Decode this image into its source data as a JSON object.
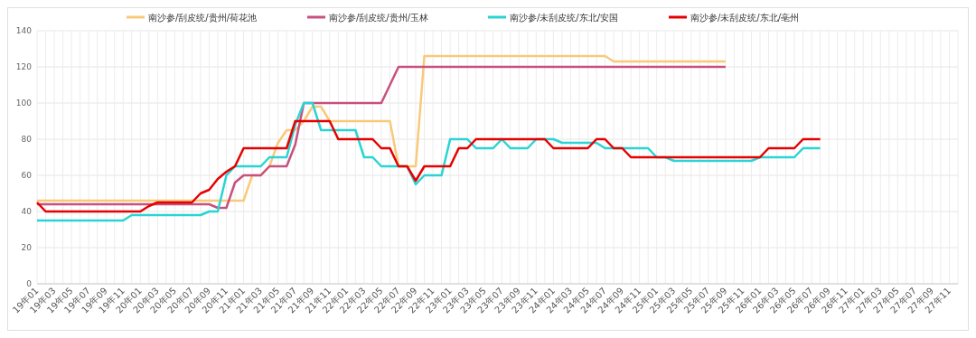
{
  "chart_data": {
    "type": "line",
    "categories": [
      "19年01",
      null,
      "19年03",
      null,
      "19年05",
      null,
      "19年07",
      null,
      "19年09",
      null,
      "19年11",
      null,
      "20年01",
      null,
      "20年03",
      null,
      "20年05",
      null,
      "20年07",
      null,
      "20年09",
      null,
      "20年11",
      null,
      "21年01",
      null,
      "21年03",
      null,
      "21年05",
      null,
      "21年07",
      null,
      "21年09",
      null,
      "21年11",
      null,
      "22年01",
      null,
      "22年03",
      null,
      "22年05",
      null,
      "22年07",
      null,
      "22年09",
      null,
      "22年11",
      null,
      "23年01",
      null,
      "23年03",
      null,
      "23年05",
      null,
      "23年07",
      null,
      "23年09",
      null,
      "23年11",
      null,
      "24年01",
      null,
      "24年03",
      null,
      "24年05",
      null,
      "24年07",
      null,
      "24年09",
      null,
      "24年11",
      null,
      "25年01",
      null,
      "25年03",
      null,
      "25年05",
      null,
      "25年07",
      null,
      "25年09",
      null,
      "25年11",
      null,
      "26年01",
      null,
      "26年03",
      null,
      "26年05",
      null,
      "26年07",
      null,
      "26年09",
      null,
      "26年11",
      null,
      "27年01",
      null,
      "27年03",
      null,
      "27年05",
      null,
      "27年07",
      null,
      "27年09",
      null,
      "27年11",
      null
    ],
    "series": [
      {
        "name": "南沙参/刮皮统/贵州/荷花池",
        "color": "#f9c97a",
        "values": [
          46,
          46,
          46,
          46,
          46,
          46,
          46,
          46,
          46,
          46,
          46,
          46,
          46,
          46,
          46,
          46,
          46,
          46,
          46,
          46,
          46,
          46,
          46,
          46,
          46,
          60,
          60,
          65,
          78,
          85,
          85,
          90,
          98,
          98,
          90,
          90,
          90,
          90,
          90,
          90,
          90,
          90,
          65,
          65,
          65,
          126,
          126,
          126,
          126,
          126,
          126,
          126,
          126,
          126,
          126,
          126,
          126,
          126,
          126,
          126,
          126,
          126,
          126,
          126,
          126,
          126,
          126,
          123,
          123,
          123,
          123,
          123,
          123,
          123,
          123,
          123,
          123,
          123,
          123,
          123,
          123,
          null,
          null,
          null,
          null,
          null,
          null,
          null,
          null,
          null,
          null,
          null,
          null,
          null,
          null,
          null,
          null,
          null,
          null,
          null,
          null,
          null,
          null,
          null,
          null,
          null,
          null,
          null
        ]
      },
      {
        "name": "南沙参/刮皮统/贵州/玉林",
        "color": "#c8507e",
        "values": [
          44,
          44,
          44,
          44,
          44,
          44,
          44,
          44,
          44,
          44,
          44,
          44,
          44,
          44,
          44,
          44,
          44,
          44,
          44,
          44,
          44,
          42,
          42,
          56,
          60,
          60,
          60,
          65,
          65,
          65,
          77,
          100,
          100,
          100,
          100,
          100,
          100,
          100,
          100,
          100,
          100,
          110,
          120,
          120,
          120,
          120,
          120,
          120,
          120,
          120,
          120,
          120,
          120,
          120,
          120,
          120,
          120,
          120,
          120,
          120,
          120,
          120,
          120,
          120,
          120,
          120,
          120,
          120,
          120,
          120,
          120,
          120,
          120,
          120,
          120,
          120,
          120,
          120,
          120,
          120,
          120,
          null,
          null,
          null,
          null,
          null,
          null,
          null,
          null,
          null,
          null,
          null,
          null,
          null,
          null,
          null,
          null,
          null,
          null,
          null,
          null,
          null,
          null,
          null,
          null,
          null,
          null,
          null
        ]
      },
      {
        "name": "南沙参/未刮皮统/东北/安国",
        "color": "#2ad4d4",
        "values": [
          35,
          35,
          35,
          35,
          35,
          35,
          35,
          35,
          35,
          35,
          35,
          38,
          38,
          38,
          38,
          38,
          38,
          38,
          38,
          38,
          40,
          40,
          60,
          65,
          65,
          65,
          65,
          70,
          70,
          70,
          88,
          100,
          100,
          85,
          85,
          85,
          85,
          85,
          70,
          70,
          65,
          65,
          65,
          65,
          55,
          60,
          60,
          60,
          80,
          80,
          80,
          75,
          75,
          75,
          80,
          75,
          75,
          75,
          80,
          80,
          80,
          78,
          78,
          78,
          78,
          78,
          75,
          75,
          75,
          75,
          75,
          75,
          70,
          70,
          68,
          68,
          68,
          68,
          68,
          68,
          68,
          68,
          68,
          68,
          70,
          70,
          70,
          70,
          70,
          75,
          75,
          75,
          null,
          null,
          null,
          null,
          null,
          null,
          null,
          null,
          null,
          null,
          null,
          null,
          null,
          null,
          null,
          null
        ]
      },
      {
        "name": "南沙参/未刮皮统/东北/亳州",
        "color": "#e60000",
        "values": [
          45,
          40,
          40,
          40,
          40,
          40,
          40,
          40,
          40,
          40,
          40,
          40,
          40,
          43,
          45,
          45,
          45,
          45,
          45,
          50,
          52,
          58,
          62,
          65,
          75,
          75,
          75,
          75,
          75,
          75,
          90,
          90,
          90,
          90,
          90,
          80,
          80,
          80,
          80,
          80,
          75,
          75,
          65,
          65,
          57,
          65,
          65,
          65,
          65,
          75,
          75,
          80,
          80,
          80,
          80,
          80,
          80,
          80,
          80,
          80,
          75,
          75,
          75,
          75,
          75,
          80,
          80,
          75,
          75,
          70,
          70,
          70,
          70,
          70,
          70,
          70,
          70,
          70,
          70,
          70,
          70,
          70,
          70,
          70,
          70,
          75,
          75,
          75,
          75,
          80,
          80,
          80,
          null,
          null,
          null,
          null,
          null,
          null,
          null,
          null,
          null,
          null,
          null,
          null,
          null,
          null,
          null,
          null
        ]
      }
    ],
    "ylim": [
      0,
      140
    ],
    "yticks": [
      0,
      20,
      40,
      60,
      80,
      100,
      120,
      140
    ],
    "grid": true,
    "legend": "top",
    "marker": "none"
  }
}
